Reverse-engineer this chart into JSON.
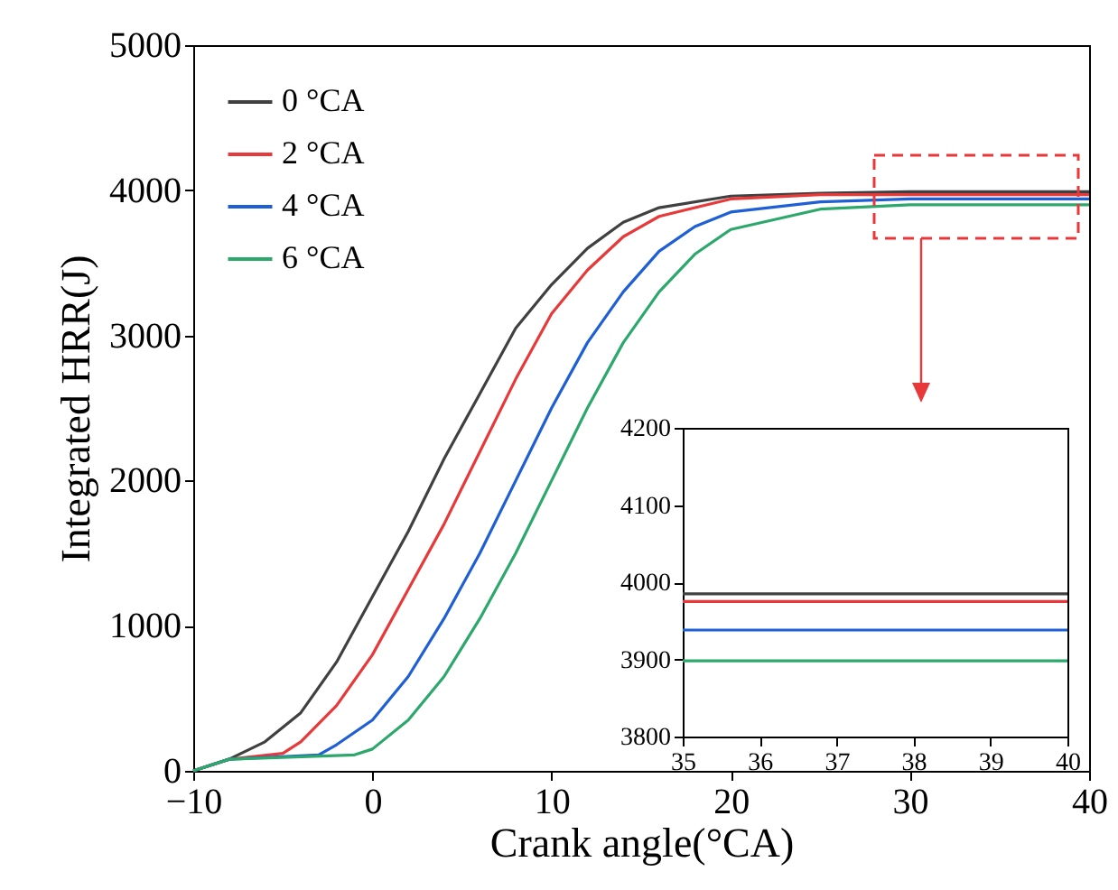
{
  "chart_data": [
    {
      "type": "line",
      "xlabel": "Crank angle(°CA)",
      "ylabel": "Integrated HRR(J)",
      "xlim": [
        -10,
        40
      ],
      "ylim": [
        0,
        5000
      ],
      "xticks": [
        -10,
        0,
        10,
        20,
        30,
        40
      ],
      "yticks": [
        0,
        1000,
        2000,
        3000,
        4000,
        5000
      ],
      "legend": "top left",
      "grid": false,
      "marker": "none",
      "line_style": "solid",
      "series": [
        {
          "name": "0 °CA",
          "color": "#404040",
          "x": [
            -10,
            -8,
            -6,
            -4,
            -2,
            0,
            2,
            4,
            6,
            8,
            10,
            12,
            14,
            16,
            20,
            25,
            30,
            40
          ],
          "values": [
            0,
            80,
            200,
            400,
            750,
            1200,
            1650,
            2150,
            2600,
            3050,
            3350,
            3600,
            3780,
            3880,
            3960,
            3980,
            3990,
            3990
          ]
        },
        {
          "name": "2 °CA",
          "color": "#e8393a",
          "x": [
            -10,
            -8,
            -5,
            -4,
            -2,
            0,
            2,
            4,
            6,
            8,
            10,
            12,
            14,
            16,
            20,
            25,
            30,
            40
          ],
          "values": [
            0,
            80,
            120,
            200,
            450,
            800,
            1250,
            1700,
            2200,
            2700,
            3150,
            3450,
            3680,
            3820,
            3940,
            3970,
            3970,
            3970
          ]
        },
        {
          "name": "4 °CA",
          "color": "#1f5fd6",
          "x": [
            -10,
            -8,
            -3,
            -2,
            0,
            2,
            4,
            6,
            8,
            10,
            12,
            14,
            16,
            18,
            20,
            25,
            30,
            40
          ],
          "values": [
            0,
            80,
            110,
            180,
            350,
            650,
            1050,
            1500,
            2000,
            2500,
            2950,
            3300,
            3580,
            3750,
            3850,
            3920,
            3940,
            3940
          ]
        },
        {
          "name": "6 °CA",
          "color": "#2ca86c",
          "x": [
            -10,
            -8,
            -1,
            0,
            2,
            4,
            6,
            8,
            10,
            12,
            14,
            16,
            18,
            20,
            25,
            30,
            40
          ],
          "values": [
            0,
            80,
            110,
            150,
            350,
            650,
            1050,
            1500,
            2000,
            2500,
            2950,
            3300,
            3560,
            3730,
            3870,
            3900,
            3900
          ]
        }
      ]
    },
    {
      "type": "line",
      "xlim": [
        35,
        40
      ],
      "ylim": [
        3800,
        4200
      ],
      "xticks": [
        35,
        36,
        37,
        38,
        39,
        40
      ],
      "yticks": [
        3800,
        3900,
        4000,
        4100,
        4200
      ],
      "legend": false,
      "grid": false,
      "marker": "none",
      "line_style": "solid",
      "series": [
        {
          "color": "#404040",
          "x": [
            35,
            40
          ],
          "values": [
            3985,
            3985
          ]
        },
        {
          "color": "#e8393a",
          "x": [
            35,
            40
          ],
          "values": [
            3975,
            3975
          ]
        },
        {
          "color": "#1f5fd6",
          "x": [
            35,
            40
          ],
          "values": [
            3938,
            3938
          ]
        },
        {
          "color": "#2ca86c",
          "x": [
            35,
            40
          ],
          "values": [
            3898,
            3898
          ]
        }
      ]
    }
  ]
}
